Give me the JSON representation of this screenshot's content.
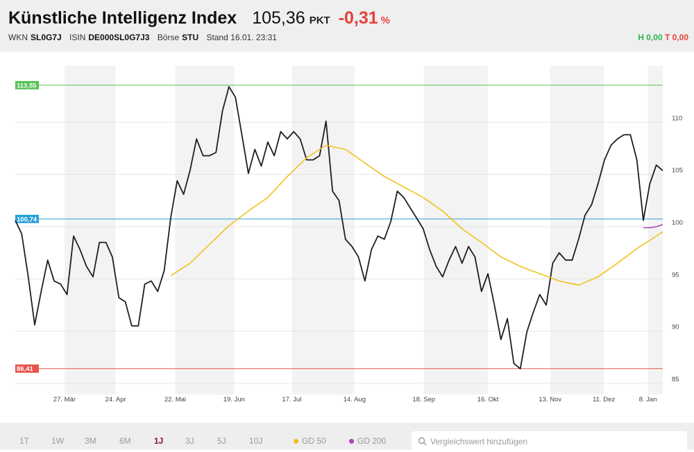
{
  "header": {
    "title": "Künstliche Intelligenz Index",
    "price": "105,36",
    "price_unit": "PKT",
    "change": "-0,31",
    "change_unit": "%",
    "wkn_label": "WKN",
    "wkn": "SL0G7J",
    "isin_label": "ISIN",
    "isin": "DE000SL0G7J3",
    "exchange_label": "Börse",
    "exchange": "STU",
    "timestamp": "Stand 16.01. 23:31",
    "high": "H 0,00",
    "low": "T 0,00"
  },
  "chart_data": {
    "type": "line",
    "xlim": [
      0,
      100
    ],
    "xticks": [
      {
        "value": 7.6,
        "label": "27. Mär"
      },
      {
        "value": 15.5,
        "label": "24. Apr"
      },
      {
        "value": 24.7,
        "label": "22. Mai"
      },
      {
        "value": 33.8,
        "label": "19. Jun"
      },
      {
        "value": 42.7,
        "label": "17. Jul"
      },
      {
        "value": 52.4,
        "label": "14. Aug"
      },
      {
        "value": 63.1,
        "label": "18. Sep"
      },
      {
        "value": 73,
        "label": "16. Okt"
      },
      {
        "value": 82.6,
        "label": "13. Nov"
      },
      {
        "value": 90.9,
        "label": "11. Dez"
      },
      {
        "value": 97.7,
        "label": "8. Jan"
      }
    ],
    "ylim": [
      84.2,
      115.4
    ],
    "yticks": [
      85,
      90,
      95,
      100,
      105,
      110
    ],
    "grid": true,
    "reference_lines": [
      {
        "value": 113.55,
        "label": "113,55",
        "color": "#57c057"
      },
      {
        "value": 100.74,
        "label": "100,74",
        "color": "#2aa0d8"
      },
      {
        "value": 86.41,
        "label": "86,41",
        "color": "#e8534a"
      }
    ],
    "series": [
      {
        "color": "#1e1e1e",
        "x": [
          0,
          1,
          2,
          3,
          4,
          5,
          6,
          7,
          8,
          9,
          10,
          11,
          12,
          13,
          14,
          15,
          16,
          17,
          18,
          19,
          20,
          21,
          22,
          23,
          24,
          25,
          26,
          27,
          28,
          29,
          30,
          31,
          32,
          33,
          34,
          35,
          36,
          37,
          38,
          39,
          40,
          41,
          42,
          43,
          44,
          45,
          46,
          47,
          48,
          49,
          50,
          51,
          52,
          53,
          54,
          55,
          56,
          57,
          58,
          59,
          60,
          61,
          62,
          63,
          64,
          65,
          66,
          67,
          68,
          69,
          70,
          71,
          72,
          73,
          74,
          75,
          76,
          77,
          78,
          79,
          80,
          81,
          82,
          83,
          84,
          85,
          86,
          87,
          88,
          89,
          90,
          91,
          92,
          93,
          94,
          95,
          96,
          97,
          98,
          99,
          100
        ],
        "values": [
          100.6,
          99.3,
          95.2,
          90.6,
          93.8,
          96.8,
          94.8,
          94.5,
          93.5,
          99.1,
          97.8,
          96.2,
          95.2,
          98.5,
          98.5,
          97.1,
          93.2,
          92.8,
          90.5,
          90.5,
          94.5,
          94.8,
          93.8,
          95.8,
          100.8,
          104.4,
          103.1,
          105.4,
          108.4,
          106.8,
          106.8,
          107.1,
          111.1,
          113.4,
          112.4,
          108.8,
          105.1,
          107.4,
          105.8,
          108.1,
          106.8,
          109.1,
          108.4,
          109.1,
          108.4,
          106.4,
          106.4,
          106.8,
          110.1,
          103.4,
          102.5,
          98.8,
          98.1,
          97.1,
          94.8,
          97.8,
          99.1,
          98.8,
          100.5,
          103.4,
          102.8,
          101.8,
          100.8,
          99.8,
          97.8,
          96.2,
          95.2,
          96.8,
          98.1,
          96.5,
          98.1,
          97.1,
          93.8,
          95.5,
          92.5,
          89.2,
          91.2,
          86.9,
          86.4,
          89.9,
          91.8,
          93.5,
          92.5,
          96.5,
          97.5,
          96.8,
          96.8,
          98.8,
          101.1,
          102.1,
          104.1,
          106.4,
          107.8,
          108.4,
          108.8,
          108.8,
          106.4,
          100.6,
          104.1,
          105.9,
          105.36
        ]
      },
      {
        "name": "GD 50",
        "color": "#f2c11c",
        "x": [
          24,
          27,
          30,
          33,
          36,
          39,
          42,
          45,
          48,
          51,
          54,
          57,
          60,
          63,
          66,
          69,
          72,
          75,
          78,
          81,
          84,
          87,
          90,
          93,
          96,
          99,
          100
        ],
        "values": [
          95.3,
          96.5,
          98.3,
          100.1,
          101.5,
          102.8,
          104.8,
          106.6,
          107.8,
          107.4,
          106.1,
          104.8,
          103.8,
          102.8,
          101.5,
          99.8,
          98.5,
          97.1,
          96.2,
          95.5,
          94.8,
          94.4,
          95.2,
          96.5,
          97.9,
          99.1,
          99.5
        ]
      },
      {
        "name": "GD 200",
        "color": "#b041c0",
        "x": [
          97,
          98,
          99,
          100
        ],
        "values": [
          99.9,
          99.9,
          100.0,
          100.2
        ]
      }
    ]
  },
  "toolbar": {
    "ranges": [
      "1T",
      "1W",
      "3M",
      "6M",
      "1J",
      "3J",
      "5J",
      "10J"
    ],
    "active_range": "1J",
    "search_placeholder": "Vergleichswert hinzufügen"
  }
}
